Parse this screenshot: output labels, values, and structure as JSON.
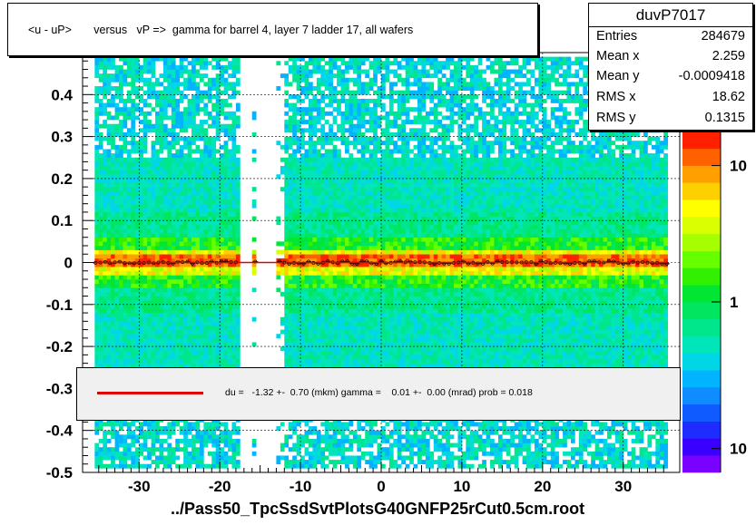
{
  "title": "<u - uP>       versus   vP =>  gamma for barrel 4, layer 7 ladder 17, all wafers",
  "stats": {
    "name": "duvP7017",
    "rows": [
      {
        "label": "Entries",
        "value": "284679"
      },
      {
        "label": "Mean x",
        "value": "2.259"
      },
      {
        "label": "Mean y",
        "value": "-0.0009418"
      },
      {
        "label": "RMS x",
        "value": "18.62"
      },
      {
        "label": "RMS y",
        "value": "0.1315"
      }
    ]
  },
  "fit": {
    "text": "du =   -1.32 +-  0.70 (mkm) gamma =    0.01 +-  0.00 (mrad) prob = 0.018",
    "line_color": "#e00000"
  },
  "file_label": "../Pass50_TpcSsdSvtPlotsG40GNFP25rCut0.5cm.root",
  "chart_data": {
    "type": "heatmap",
    "x_ticks": [
      -30,
      -20,
      -10,
      0,
      10,
      20,
      30
    ],
    "y_ticks": [
      -0.5,
      -0.4,
      -0.3,
      -0.2,
      -0.1,
      0,
      0.1,
      0.2,
      0.3,
      0.4
    ],
    "xlim": [
      -37,
      37
    ],
    "ylim": [
      -0.5,
      0.5
    ],
    "x_tick_labels": [
      "-30",
      "-20",
      "-10",
      "0",
      "10",
      "20",
      "30"
    ],
    "y_tick_labels": [
      "-0.5",
      "-0.4",
      "-0.3",
      "-0.2",
      "-0.1",
      "0",
      "0.1",
      "0.2",
      "0.3",
      "0.4"
    ],
    "colorbar_labels": [
      "10",
      "1",
      "10"
    ],
    "grid": true,
    "gap_ranges_x": [
      [
        -17.5,
        -16
      ],
      [
        -15.5,
        -13
      ]
    ],
    "data_range_x": [
      -35.5,
      35.5
    ],
    "band_center_y": -0.001,
    "profile_y": 0,
    "colors": [
      "#7a00ff",
      "#3a00ff",
      "#1f2cff",
      "#0f5bff",
      "#0f8cff",
      "#00b4ff",
      "#00d6e6",
      "#00e6b8",
      "#00e68c",
      "#00e660",
      "#00e633",
      "#33f000",
      "#66ff00",
      "#a6ff00",
      "#d9ff00",
      "#ffff00",
      "#ffd000",
      "#ffa000",
      "#ff6000",
      "#ff2000"
    ]
  }
}
